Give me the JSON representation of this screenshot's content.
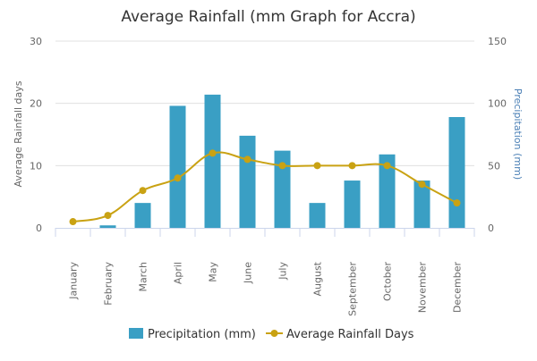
{
  "chart_data": {
    "type": "bar",
    "title": "Average Rainfall (mm Graph for Accra)",
    "categories": [
      "January",
      "February",
      "March",
      "April",
      "May",
      "June",
      "July",
      "August",
      "September",
      "October",
      "November",
      "December"
    ],
    "series": [
      {
        "name": "Precipitation (mm)",
        "type": "bar",
        "axis": "right",
        "color": "#3a9fc4",
        "values": [
          0,
          2,
          20,
          98,
          107,
          74,
          62,
          20,
          38,
          59,
          38,
          89
        ]
      },
      {
        "name": "Average Rainfall Days",
        "type": "line",
        "axis": "left",
        "color": "#c9a213",
        "values": [
          1,
          2,
          6,
          8,
          12,
          11,
          10,
          10,
          10,
          10,
          7,
          4
        ]
      }
    ],
    "left_axis": {
      "label": "Average Rainfall days",
      "ylim": [
        0,
        30
      ],
      "ticks": [
        "0",
        "10",
        "20",
        "30"
      ]
    },
    "right_axis": {
      "label": "Precipitation (mm)",
      "ylim": [
        0,
        150
      ],
      "ticks": [
        "0",
        "50",
        "100",
        "150"
      ]
    },
    "grid": true,
    "legend": "bottom-center"
  }
}
